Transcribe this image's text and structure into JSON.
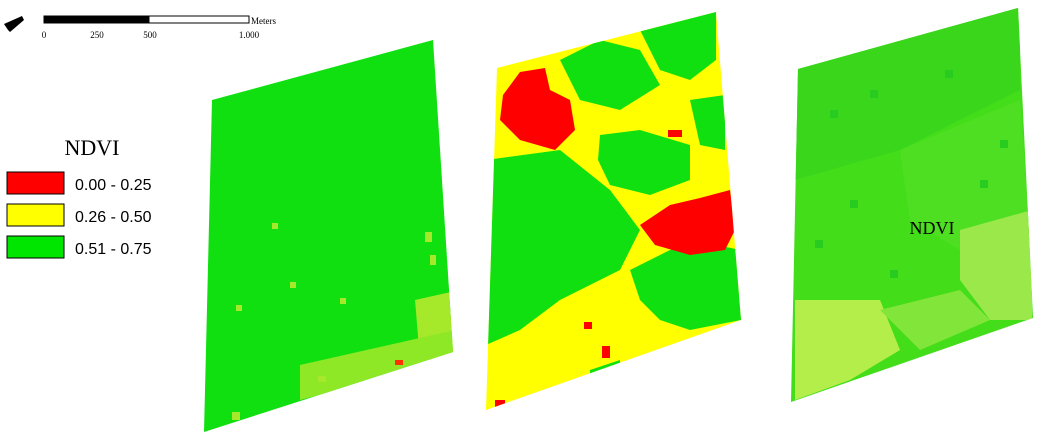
{
  "scale_bar": {
    "ticks": [
      "0",
      "250",
      "500",
      "1.000"
    ],
    "unit": "Meters"
  },
  "legend": {
    "title": "NDVI",
    "classes": [
      {
        "label": "0.00 - 0.25",
        "color": "#ff0000"
      },
      {
        "label": "0.26 - 0.50",
        "color": "#ffff00"
      },
      {
        "label": "0.51 - 0.75",
        "color": "#00e600"
      }
    ]
  },
  "maps": [
    {
      "name": "field-map-1",
      "base_color": "#10e010"
    },
    {
      "name": "field-map-2",
      "base_color": "#10e010"
    },
    {
      "name": "field-map-3",
      "base_color": "#44dd1a",
      "label": "NDVI"
    }
  ]
}
